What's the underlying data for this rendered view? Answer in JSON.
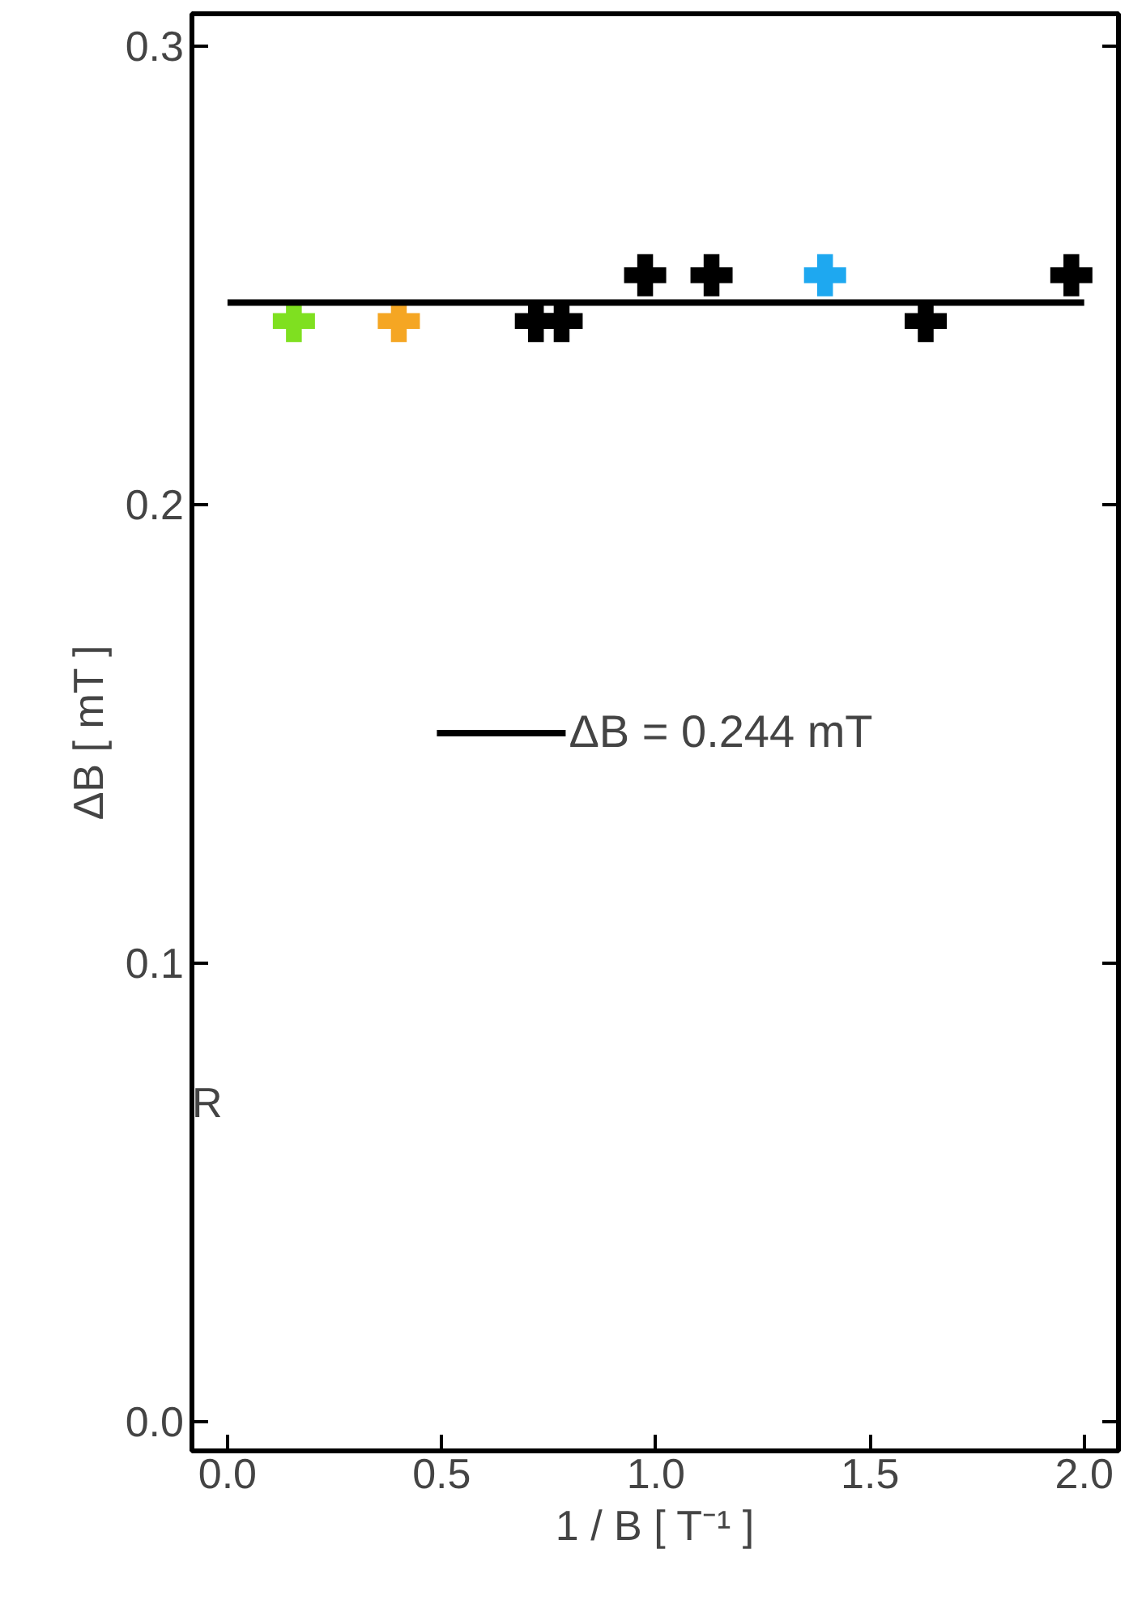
{
  "chart_data": {
    "type": "scatter",
    "xlabel": "1 / B [ T⁻¹ ]",
    "ylabel": "ΔB [ mT ]",
    "xlim": [
      -0.083,
      2.08
    ],
    "ylim": [
      -0.0064,
      0.307
    ],
    "xticks": [
      {
        "value": 0,
        "label": "0.0"
      },
      {
        "value": 0.5,
        "label": "0.5"
      },
      {
        "value": 1,
        "label": "1.0"
      },
      {
        "value": 1.5,
        "label": "1.5"
      },
      {
        "value": 2,
        "label": "2.0"
      }
    ],
    "yticks": [
      {
        "value": 0,
        "label": "0.0"
      },
      {
        "value": 0.1,
        "label": "0.1"
      },
      {
        "value": 0.2,
        "label": "0.2"
      },
      {
        "value": 0.3,
        "label": "0.3"
      }
    ],
    "marker": "cross",
    "grid": false,
    "legend": "center",
    "annotations": [
      "R"
    ],
    "series": [
      {
        "type": "scatter",
        "x": [
          0.155,
          0.4,
          0.72,
          0.78,
          0.975,
          1.13,
          1.395,
          1.63,
          1.97
        ],
        "values": [
          0.24,
          0.24,
          0.24,
          0.24,
          0.25,
          0.25,
          0.25,
          0.24,
          0.25
        ],
        "colors": [
          "#7fe020",
          "#f5a623",
          "#000000",
          "#000000",
          "#000000",
          "#000000",
          "#1ea8f0",
          "#000000",
          "#000000"
        ]
      },
      {
        "type": "line",
        "name": "ΔB = 0.244 mT",
        "color": "#000000",
        "x": [
          0,
          2.0
        ],
        "values": [
          0.244,
          0.244
        ],
        "line_style": "solid",
        "marker": "none"
      }
    ]
  }
}
